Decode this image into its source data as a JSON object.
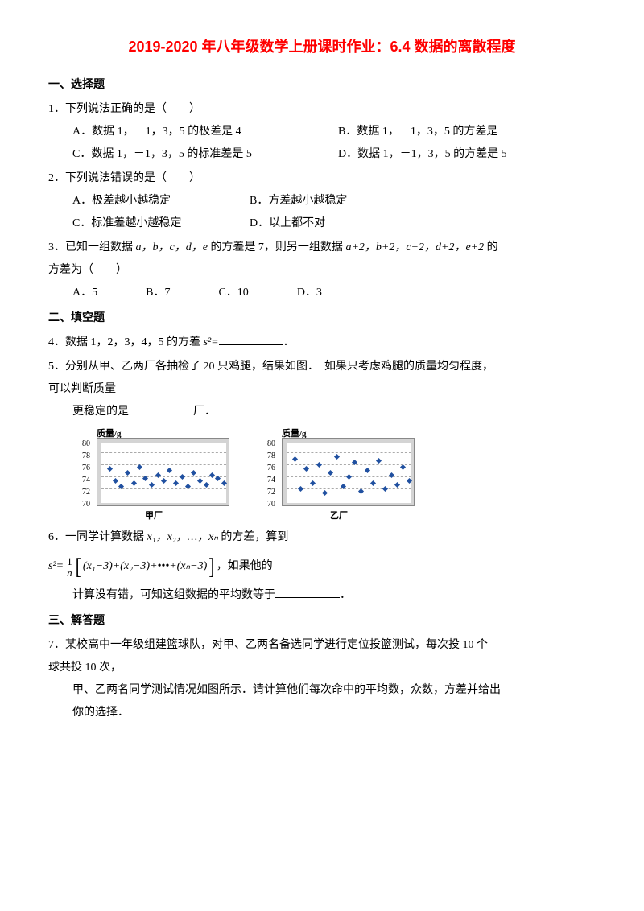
{
  "title": "2019-2020 年八年级数学上册课时作业：6.4 数据的离散程度",
  "sections": {
    "s1": "一、选择题",
    "s2": "二、填空题",
    "s3": "三、解答题"
  },
  "q1": {
    "text": "1．下列说法正确的是（　　）",
    "optA": "A．数据 1，－1，3，5 的极差是 4",
    "optB": "B．数据 1，－1，3，5 的方差是",
    "optC": "C．数据 1，－1，3，5 的标准差是 5",
    "optD": "D．数据 1，－1，3，5 的方差是 5"
  },
  "q2": {
    "text": "2．下列说法错误的是（　　）",
    "optA": "A．极差越小越稳定",
    "optB": "B．方差越小越稳定",
    "optC": "C．标准差越小越稳定",
    "optD": "D．以上都不对"
  },
  "q3": {
    "line1": "3．已知一组数据 ",
    "vars": "a，b，c，d，e",
    "line1b": " 的方差是 7，则另一组数据 ",
    "vars2": "a+2，b+2，c+2，d+2，e+2",
    "line1c": " 的",
    "line2": "方差为（　　）",
    "optA": "A．5",
    "optB": "B．7",
    "optC": "C．10",
    "optD": "D．3"
  },
  "q4": {
    "prefix": "4．数据 1，2，3，4，5 的方差 ",
    "s2": "s²=",
    "suffix": "．"
  },
  "q5": {
    "line1": "5．分别从甲、乙两厂各抽检了 20 只鸡腿，结果如图．　如果只考虑鸡腿的质量均匀程度，",
    "line2": "可以判断质量",
    "line3": "更稳定的是",
    "suffix": "厂．"
  },
  "charts": {
    "ylabel": "质量/g",
    "ticks": [
      "80",
      "78",
      "76",
      "74",
      "72",
      "70"
    ],
    "xlabel1": "甲厂",
    "xlabel2": "乙厂",
    "bg_color": "#d4d4d4",
    "dot_color": "#2050a0",
    "chart1_points": [
      [
        8,
        30
      ],
      [
        15,
        45
      ],
      [
        22,
        52
      ],
      [
        30,
        35
      ],
      [
        38,
        48
      ],
      [
        45,
        28
      ],
      [
        52,
        42
      ],
      [
        60,
        50
      ],
      [
        68,
        38
      ],
      [
        75,
        45
      ],
      [
        82,
        32
      ],
      [
        90,
        48
      ],
      [
        98,
        40
      ],
      [
        105,
        52
      ],
      [
        112,
        35
      ],
      [
        120,
        45
      ],
      [
        128,
        50
      ],
      [
        135,
        38
      ],
      [
        142,
        42
      ],
      [
        150,
        48
      ]
    ],
    "chart2_points": [
      [
        8,
        18
      ],
      [
        15,
        55
      ],
      [
        22,
        30
      ],
      [
        30,
        48
      ],
      [
        38,
        25
      ],
      [
        45,
        60
      ],
      [
        52,
        35
      ],
      [
        60,
        15
      ],
      [
        68,
        52
      ],
      [
        75,
        40
      ],
      [
        82,
        22
      ],
      [
        90,
        58
      ],
      [
        98,
        32
      ],
      [
        105,
        48
      ],
      [
        112,
        20
      ],
      [
        120,
        55
      ],
      [
        128,
        38
      ],
      [
        135,
        50
      ],
      [
        142,
        28
      ],
      [
        150,
        45
      ]
    ]
  },
  "q6": {
    "prefix": "6．一同学计算数据 ",
    "vars": "x₁，x₂，…，xₙ",
    "suffix": " 的方差，算到",
    "formula_lhs": "s²=",
    "formula_body": "(x₁−3)+(x₂−3)+•••+(xₙ−3)",
    "formula_end": "，如果他的",
    "line3": "计算没有错，可知这组数据的平均数等于",
    "dot": "．"
  },
  "q7": {
    "line1": "7．某校高中一年级组建篮球队，对甲、乙两名备选同学进行定位投篮测试，每次投 10 个",
    "line2": "球共投 10 次，",
    "line3": "甲、乙两名同学测试情况如图所示．请计算他们每次命中的平均数，众数，方差并给出",
    "line4": "你的选择．"
  }
}
